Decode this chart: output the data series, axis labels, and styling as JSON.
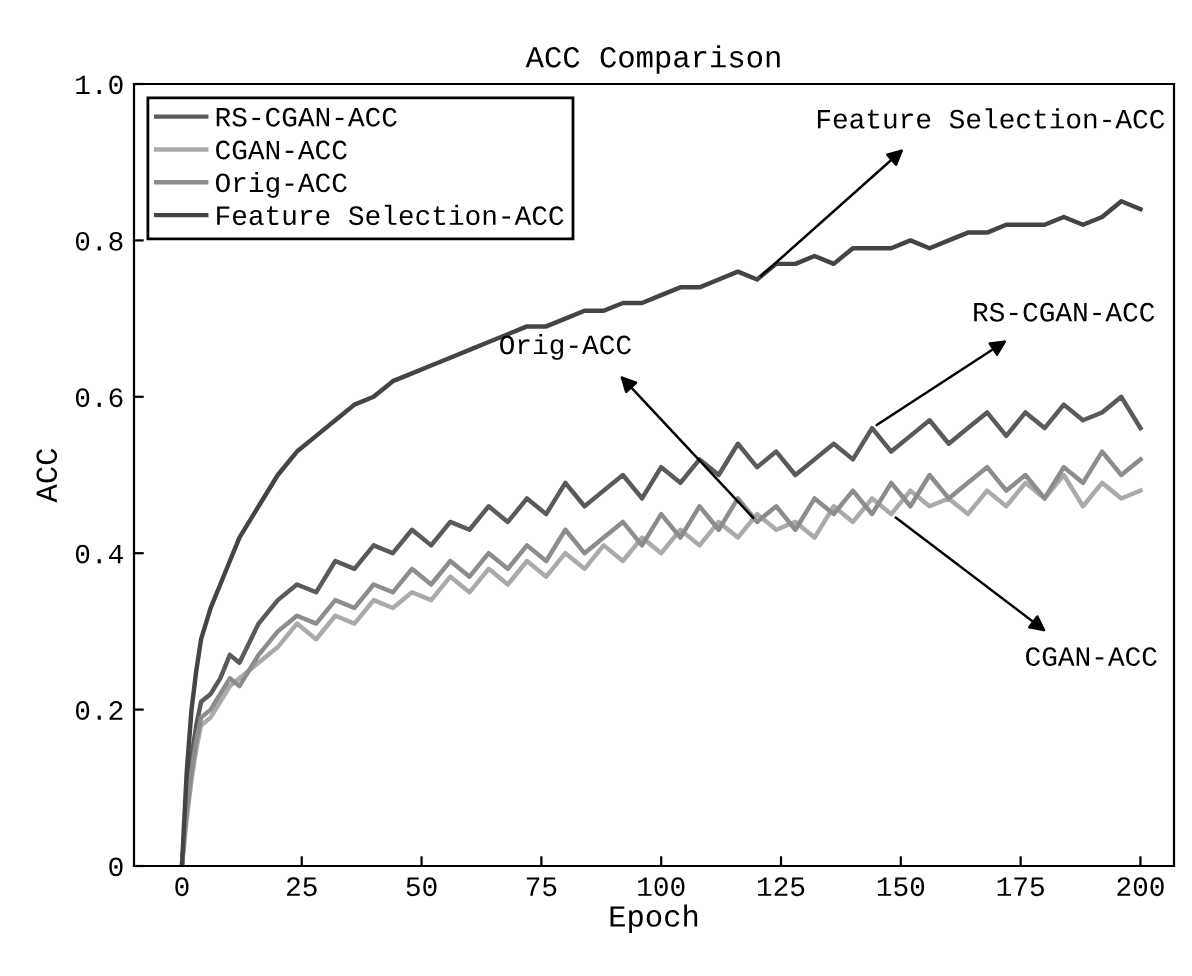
{
  "chart_data": {
    "type": "line",
    "title": "ACC Comparison",
    "xlabel": "Epoch",
    "ylabel": "ACC",
    "x": [
      0,
      1,
      2,
      3,
      4,
      6,
      8,
      10,
      12,
      16,
      20,
      24,
      28,
      32,
      36,
      40,
      44,
      48,
      52,
      56,
      60,
      64,
      68,
      72,
      76,
      80,
      84,
      88,
      92,
      96,
      100,
      104,
      108,
      112,
      116,
      120,
      124,
      128,
      132,
      136,
      140,
      144,
      148,
      152,
      156,
      160,
      164,
      168,
      172,
      176,
      180,
      184,
      188,
      192,
      196,
      200
    ],
    "series": [
      {
        "name": "RS-CGAN-ACC",
        "color": "#5a5a5a",
        "values": [
          0,
          0.08,
          0.14,
          0.18,
          0.21,
          0.22,
          0.24,
          0.27,
          0.26,
          0.31,
          0.34,
          0.36,
          0.35,
          0.39,
          0.38,
          0.41,
          0.4,
          0.43,
          0.41,
          0.44,
          0.43,
          0.46,
          0.44,
          0.47,
          0.45,
          0.49,
          0.46,
          0.48,
          0.5,
          0.47,
          0.51,
          0.49,
          0.52,
          0.5,
          0.54,
          0.51,
          0.53,
          0.5,
          0.52,
          0.54,
          0.52,
          0.56,
          0.53,
          0.55,
          0.57,
          0.54,
          0.56,
          0.58,
          0.55,
          0.58,
          0.56,
          0.59,
          0.57,
          0.58,
          0.6,
          0.56
        ]
      },
      {
        "name": "CGAN-ACC",
        "color": "#aaaaaa",
        "values": [
          0,
          0.06,
          0.11,
          0.15,
          0.18,
          0.19,
          0.21,
          0.23,
          0.24,
          0.26,
          0.28,
          0.31,
          0.29,
          0.32,
          0.31,
          0.34,
          0.33,
          0.35,
          0.34,
          0.37,
          0.35,
          0.38,
          0.36,
          0.39,
          0.37,
          0.4,
          0.38,
          0.41,
          0.39,
          0.42,
          0.4,
          0.43,
          0.41,
          0.44,
          0.42,
          0.45,
          0.43,
          0.44,
          0.42,
          0.46,
          0.44,
          0.47,
          0.45,
          0.48,
          0.46,
          0.47,
          0.45,
          0.48,
          0.46,
          0.49,
          0.47,
          0.5,
          0.46,
          0.49,
          0.47,
          0.48
        ]
      },
      {
        "name": "Orig-ACC",
        "color": "#8c8c8c",
        "values": [
          0,
          0.07,
          0.12,
          0.16,
          0.19,
          0.2,
          0.22,
          0.24,
          0.23,
          0.27,
          0.3,
          0.32,
          0.31,
          0.34,
          0.33,
          0.36,
          0.35,
          0.38,
          0.36,
          0.39,
          0.37,
          0.4,
          0.38,
          0.41,
          0.39,
          0.43,
          0.4,
          0.42,
          0.44,
          0.41,
          0.45,
          0.42,
          0.46,
          0.43,
          0.47,
          0.44,
          0.46,
          0.43,
          0.47,
          0.45,
          0.48,
          0.45,
          0.49,
          0.46,
          0.5,
          0.47,
          0.49,
          0.51,
          0.48,
          0.5,
          0.47,
          0.51,
          0.49,
          0.53,
          0.5,
          0.52
        ]
      },
      {
        "name": "Feature Selection-ACC",
        "color": "#444444",
        "values": [
          0,
          0.12,
          0.2,
          0.25,
          0.29,
          0.33,
          0.36,
          0.39,
          0.42,
          0.46,
          0.5,
          0.53,
          0.55,
          0.57,
          0.59,
          0.6,
          0.62,
          0.63,
          0.64,
          0.65,
          0.66,
          0.67,
          0.68,
          0.69,
          0.69,
          0.7,
          0.71,
          0.71,
          0.72,
          0.72,
          0.73,
          0.74,
          0.74,
          0.75,
          0.76,
          0.75,
          0.77,
          0.77,
          0.78,
          0.77,
          0.79,
          0.79,
          0.79,
          0.8,
          0.79,
          0.8,
          0.81,
          0.81,
          0.82,
          0.82,
          0.82,
          0.83,
          0.82,
          0.83,
          0.85,
          0.84
        ]
      }
    ],
    "annotations": [
      {
        "text": "Feature Selection-ACC",
        "x": 120,
        "y": 0.75
      },
      {
        "text": "RS-CGAN-ACC",
        "x": 144,
        "y": 0.56
      },
      {
        "text": "Orig-ACC",
        "x": 120,
        "y": 0.44
      },
      {
        "text": "CGAN-ACC",
        "x": 148,
        "y": 0.45
      }
    ],
    "xlim": [
      -10,
      207
    ],
    "ylim": [
      0,
      1.0
    ],
    "xticks": [
      0,
      25,
      50,
      75,
      100,
      125,
      150,
      175,
      200
    ],
    "yticks": [
      0,
      0.2,
      0.4,
      0.6,
      0.8,
      {
        "value": 1.0,
        "label": "1.0"
      }
    ],
    "legend": "top left",
    "grid": false,
    "marker": "none",
    "line_style": "solid"
  }
}
